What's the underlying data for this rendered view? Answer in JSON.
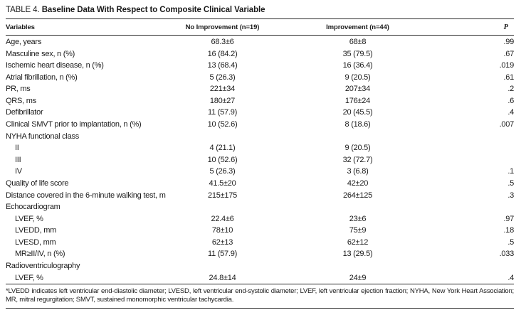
{
  "title": {
    "label": "TABLE 4.",
    "text": "Baseline Data With Respect to Composite Clinical Variable"
  },
  "table": {
    "columns": [
      "Variables",
      "No Improvement (n=19)",
      "Improvement (n=44)",
      "P"
    ],
    "rows": [
      {
        "variable": "Age, years",
        "indent": false,
        "no_improvement": "68.3±6",
        "improvement": "68±8",
        "p": ".99"
      },
      {
        "variable": "Masculine sex, n (%)",
        "indent": false,
        "no_improvement": "16 (84.2)",
        "improvement": "35 (79.5)",
        "p": ".67"
      },
      {
        "variable": "Ischemic heart disease, n (%)",
        "indent": false,
        "no_improvement": "13 (68.4)",
        "improvement": "16 (36.4)",
        "p": ".019"
      },
      {
        "variable": "Atrial fibrillation, n (%)",
        "indent": false,
        "no_improvement": "5 (26.3)",
        "improvement": "9 (20.5)",
        "p": ".61"
      },
      {
        "variable": "PR, ms",
        "indent": false,
        "no_improvement": "221±34",
        "improvement": "207±34",
        "p": ".2"
      },
      {
        "variable": "QRS, ms",
        "indent": false,
        "no_improvement": "180±27",
        "improvement": "176±24",
        "p": ".6"
      },
      {
        "variable": "Defibrillator",
        "indent": false,
        "no_improvement": "11 (57.9)",
        "improvement": "20 (45.5)",
        "p": ".4"
      },
      {
        "variable": "Clinical SMVT prior to implantation, n (%)",
        "indent": false,
        "no_improvement": "10 (52.6)",
        "improvement": "8 (18.6)",
        "p": ".007"
      },
      {
        "variable": "NYHA functional class",
        "indent": false,
        "no_improvement": "",
        "improvement": "",
        "p": ""
      },
      {
        "variable": "II",
        "indent": true,
        "no_improvement": "4 (21.1)",
        "improvement": "9 (20.5)",
        "p": ""
      },
      {
        "variable": "III",
        "indent": true,
        "no_improvement": "10 (52.6)",
        "improvement": "32 (72.7)",
        "p": ""
      },
      {
        "variable": "IV",
        "indent": true,
        "no_improvement": "5 (26.3)",
        "improvement": "3 (6.8)",
        "p": ".1"
      },
      {
        "variable": "Quality of life score",
        "indent": false,
        "no_improvement": "41.5±20",
        "improvement": "42±20",
        "p": ".5"
      },
      {
        "variable": "Distance covered in the 6-minute walking test, m",
        "indent": false,
        "no_improvement": "215±175",
        "improvement": "264±125",
        "p": ".3"
      },
      {
        "variable": "Echocardiogram",
        "indent": false,
        "no_improvement": "",
        "improvement": "",
        "p": ""
      },
      {
        "variable": "LVEF, %",
        "indent": true,
        "no_improvement": "22.4±6",
        "improvement": "23±6",
        "p": ".97"
      },
      {
        "variable": "LVEDD, mm",
        "indent": true,
        "no_improvement": "78±10",
        "improvement": "75±9",
        "p": ".18"
      },
      {
        "variable": "LVESD, mm",
        "indent": true,
        "no_improvement": "62±13",
        "improvement": "62±12",
        "p": ".5"
      },
      {
        "variable": "MR≥II/IV, n (%)",
        "indent": true,
        "no_improvement": "11 (57.9)",
        "improvement": "13 (29.5)",
        "p": ".033"
      },
      {
        "variable": "Radioventriculography",
        "indent": false,
        "no_improvement": "",
        "improvement": "",
        "p": ""
      },
      {
        "variable": "LVEF, %",
        "indent": true,
        "no_improvement": "24.8±14",
        "improvement": "24±9",
        "p": ".4"
      }
    ]
  },
  "footnote": "*LVEDD indicates left ventricular end-diastolic diameter; LVESD, left ventricular end-systolic diameter; LVEF, left ventricular ejection fraction; NYHA, New York Heart Association; MR, mitral regurgitation; SMVT, sustained monomorphic ventricular tachycardia."
}
